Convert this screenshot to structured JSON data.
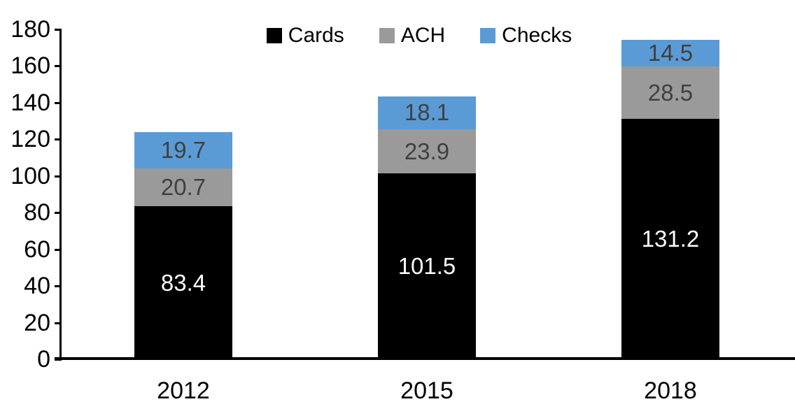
{
  "chart_data": {
    "type": "bar",
    "stacked": true,
    "categories": [
      "2012",
      "2015",
      "2018"
    ],
    "series": [
      {
        "name": "Cards",
        "color": "#000000",
        "label_color": "#FFFFFF",
        "values": [
          83.4,
          101.5,
          131.2
        ]
      },
      {
        "name": "ACH",
        "color": "#9A9A9A",
        "label_color": "#404040",
        "values": [
          20.7,
          23.9,
          28.5
        ]
      },
      {
        "name": "Checks",
        "color": "#5B9BD5",
        "label_color": "#404040",
        "values": [
          19.7,
          18.1,
          14.5
        ]
      }
    ],
    "ylim": [
      0,
      180
    ],
    "yticks": [
      0,
      20,
      40,
      60,
      80,
      100,
      120,
      140,
      160,
      180
    ],
    "legend_position": "top",
    "grid": false,
    "axis_color": "#000000",
    "background": "#FFFFFF",
    "value_label_decimals": 1
  }
}
